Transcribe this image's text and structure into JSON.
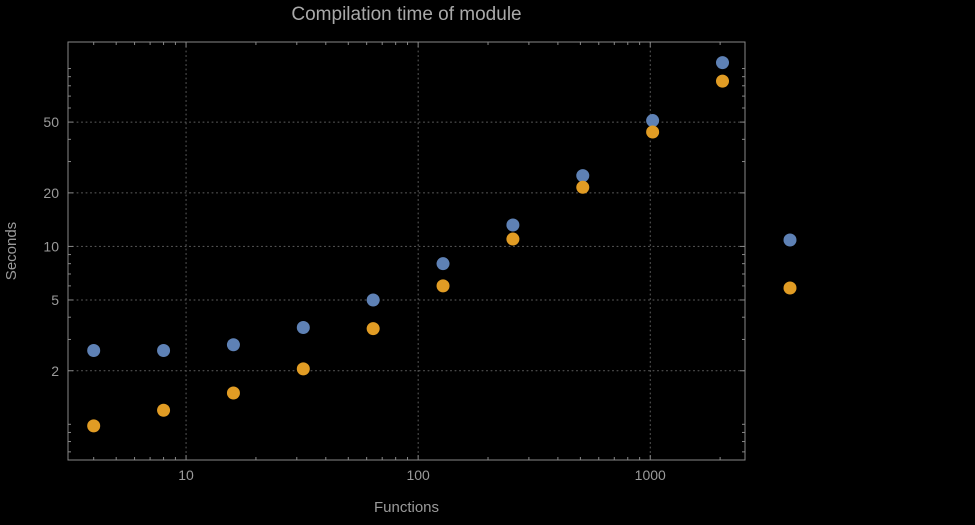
{
  "page": {
    "background_color": "#000000",
    "text_color": "#9a9a9a",
    "title_color": "#a9a9a9",
    "frame_color": "#888888",
    "grid_color": "#5f5f5f"
  },
  "chart_data": {
    "type": "scatter",
    "title": "Compilation time of module",
    "xlabel": "Functions",
    "ylabel": "Seconds",
    "xscale": "log",
    "yscale": "log",
    "xlim": [
      3.1,
      2560
    ],
    "ylim": [
      0.63,
      141
    ],
    "xticks": [
      10,
      100,
      1000
    ],
    "yticks": [
      2,
      5,
      10,
      20,
      50
    ],
    "grid": true,
    "grid_style": "dotted",
    "marker": "circle",
    "marker_radius_px": 6.5,
    "legend_position": "right-outside",
    "series": [
      {
        "name": "series-blue",
        "color": "#5e81b5",
        "points": [
          [
            4,
            2.6
          ],
          [
            8,
            2.6
          ],
          [
            16,
            2.8
          ],
          [
            32,
            3.5
          ],
          [
            64,
            5.0
          ],
          [
            128,
            8.0
          ],
          [
            256,
            13.2
          ],
          [
            512,
            25
          ],
          [
            1024,
            51
          ],
          [
            2048,
            108
          ]
        ]
      },
      {
        "name": "series-orange",
        "color": "#e19c24",
        "points": [
          [
            4,
            0.98
          ],
          [
            8,
            1.2
          ],
          [
            16,
            1.5
          ],
          [
            32,
            2.05
          ],
          [
            64,
            3.45
          ],
          [
            128,
            6.0
          ],
          [
            256,
            11.0
          ],
          [
            512,
            21.5
          ],
          [
            1024,
            44
          ],
          [
            2048,
            85
          ]
        ]
      }
    ],
    "legend": [
      {
        "color": "#5e81b5",
        "label": ""
      },
      {
        "color": "#e19c24",
        "label": ""
      }
    ]
  }
}
